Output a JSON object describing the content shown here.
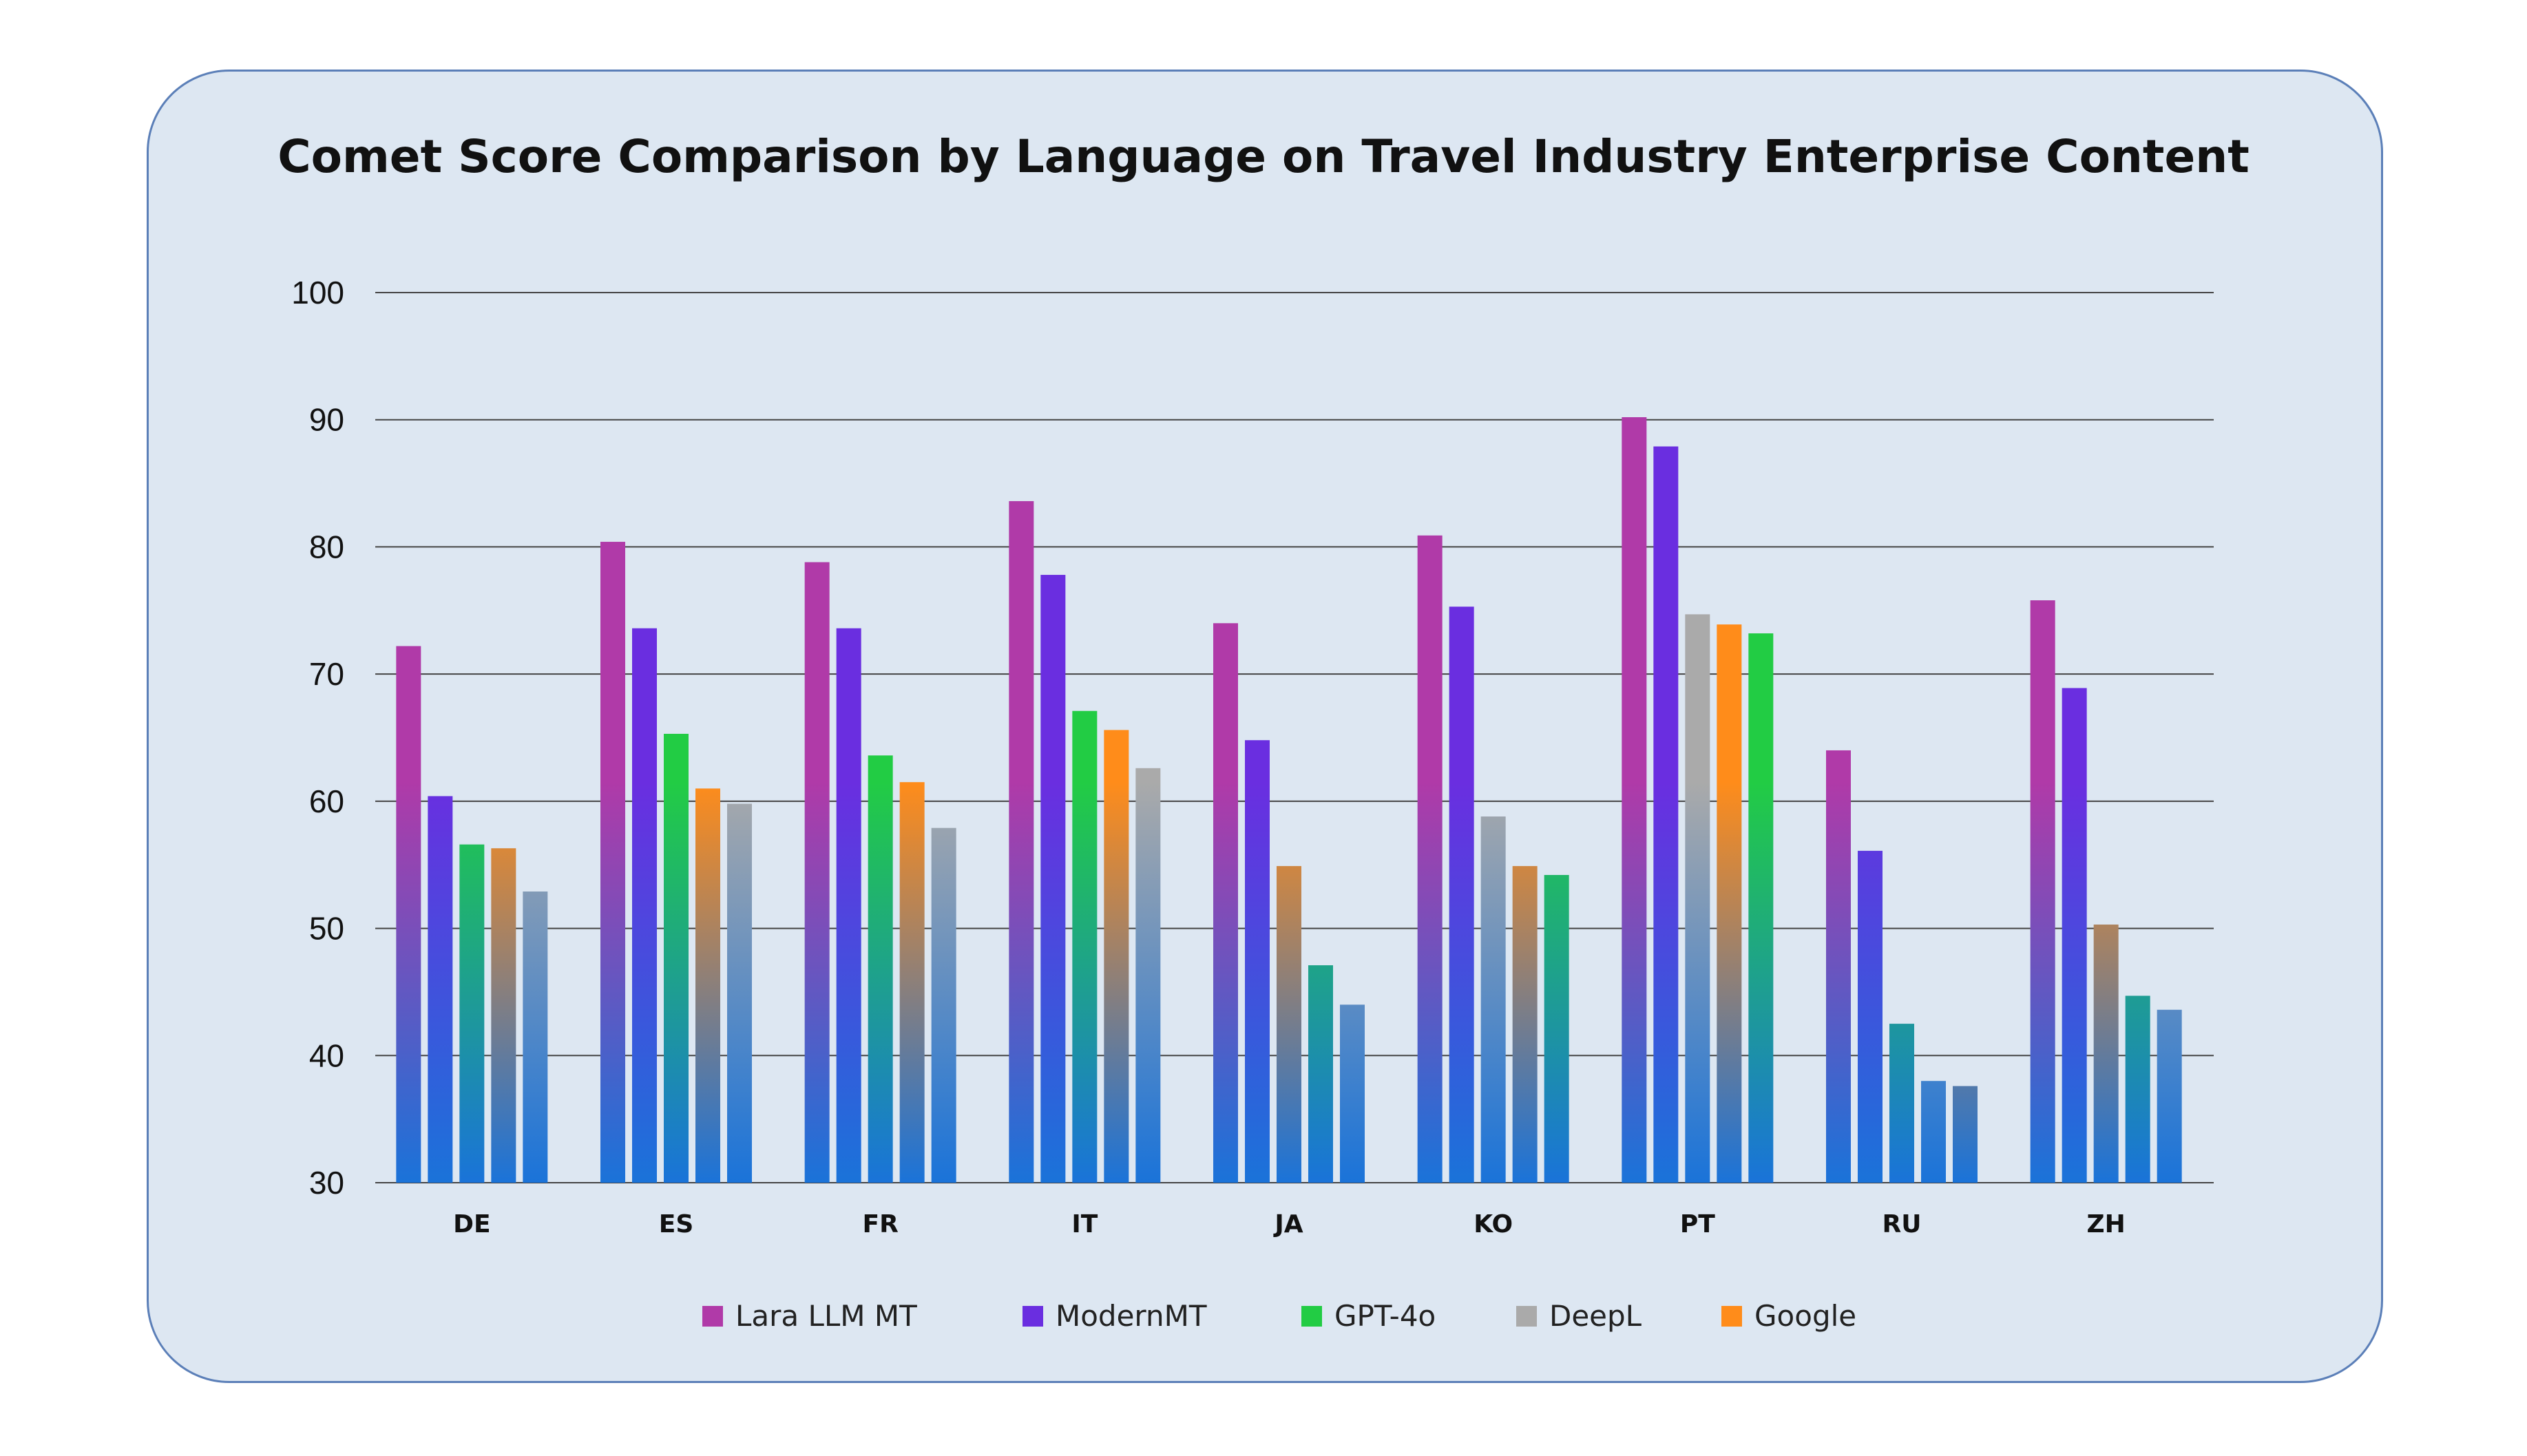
{
  "chart_data": {
    "type": "bar",
    "title": "Comet Score Comparison by Language on Travel Industry Enterprise Content",
    "xlabel": "",
    "ylabel": "",
    "ylim": [
      30,
      100
    ],
    "yticks": [
      30,
      40,
      50,
      60,
      70,
      80,
      90,
      100
    ],
    "grid": true,
    "legend_position": "bottom-center",
    "categories": [
      "DE",
      "ES",
      "FR",
      "IT",
      "JA",
      "KO",
      "PT",
      "RU",
      "ZH"
    ],
    "series": [
      {
        "name": "Lara LLM MT",
        "color": "#b03aa8",
        "values": [
          72.2,
          80.4,
          78.8,
          83.6,
          74.0,
          80.9,
          90.2,
          64.0,
          75.8
        ]
      },
      {
        "name": "ModernMT",
        "color": "#6a2ee0",
        "values": [
          60.4,
          73.6,
          73.6,
          77.8,
          64.8,
          75.3,
          87.9,
          56.1,
          68.9
        ]
      },
      {
        "name": "GPT-4o",
        "color": "#22cc44",
        "values": [
          56.6,
          65.3,
          63.6,
          67.1,
          47.1,
          54.2,
          73.2,
          42.5,
          44.7
        ]
      },
      {
        "name": "DeepL",
        "color": "#aaaaaa",
        "values": [
          52.9,
          59.8,
          57.9,
          62.6,
          44.0,
          58.8,
          74.7,
          38.0,
          43.6
        ]
      },
      {
        "name": "Google",
        "color": "#ff8c1a",
        "values": [
          56.3,
          61.0,
          61.5,
          65.6,
          54.9,
          54.9,
          73.9,
          37.6,
          50.3
        ]
      }
    ],
    "bar_order": [
      [
        "Lara LLM MT",
        "ModernMT",
        "GPT-4o",
        "Google",
        "DeepL"
      ],
      [
        "Lara LLM MT",
        "ModernMT",
        "GPT-4o",
        "Google",
        "DeepL"
      ],
      [
        "Lara LLM MT",
        "ModernMT",
        "GPT-4o",
        "Google",
        "DeepL"
      ],
      [
        "Lara LLM MT",
        "ModernMT",
        "GPT-4o",
        "Google",
        "DeepL"
      ],
      [
        "Lara LLM MT",
        "ModernMT",
        "Google",
        "GPT-4o",
        "DeepL"
      ],
      [
        "Lara LLM MT",
        "ModernMT",
        "DeepL",
        "Google",
        "GPT-4o"
      ],
      [
        "Lara LLM MT",
        "ModernMT",
        "DeepL",
        "Google",
        "GPT-4o"
      ],
      [
        "Lara LLM MT",
        "ModernMT",
        "GPT-4o",
        "DeepL",
        "Google"
      ],
      [
        "Lara LLM MT",
        "ModernMT",
        "Google",
        "GPT-4o",
        "DeepL"
      ]
    ]
  }
}
